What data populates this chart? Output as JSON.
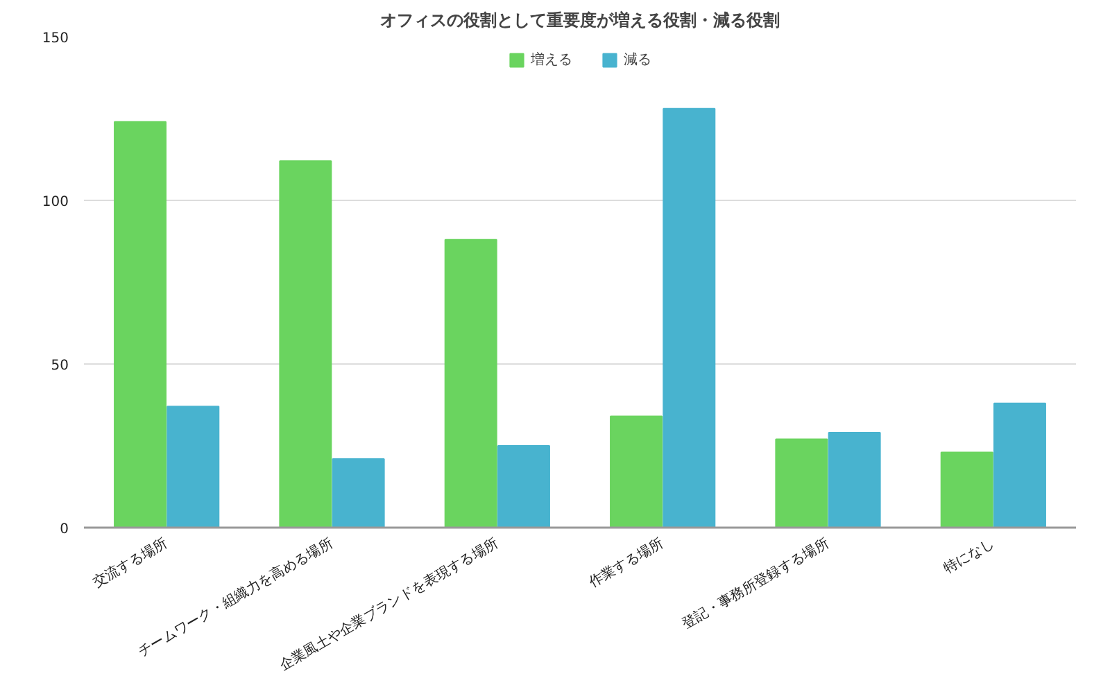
{
  "chart_data": {
    "type": "bar",
    "title": "オフィスの役割として重要度が増える役割・減る役割",
    "categories": [
      "交流する場所",
      "チームワーク・組織力を高める場所",
      "企業風土や企業ブランドを表現する場所",
      "作業する場所",
      "登記・事務所登録する場所",
      "特になし"
    ],
    "series": [
      {
        "name": "増える",
        "color": "#6ad45f",
        "values": [
          124,
          112,
          88,
          34,
          27,
          23
        ]
      },
      {
        "name": "減る",
        "color": "#48b3cf",
        "values": [
          37,
          21,
          25,
          128,
          29,
          38
        ]
      }
    ],
    "ylim": [
      0,
      150
    ],
    "yticks": [
      0,
      50,
      100,
      150
    ],
    "grid": "y",
    "legend": "top"
  }
}
